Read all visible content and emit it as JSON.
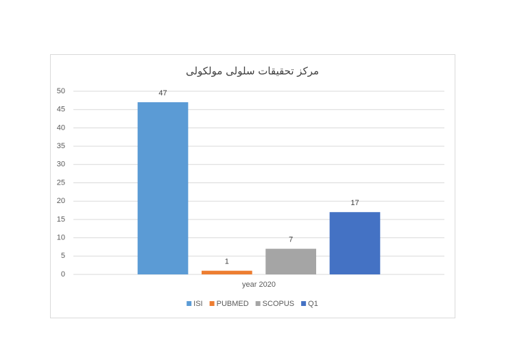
{
  "chart_data": {
    "type": "bar",
    "title": "مرکز تحقیقات سلولی مولکولی",
    "categories": [
      "year 2020"
    ],
    "series": [
      {
        "name": "ISI",
        "color": "#5b9bd5",
        "values": [
          47
        ]
      },
      {
        "name": "PUBMED",
        "color": "#ed7d31",
        "values": [
          1
        ]
      },
      {
        "name": "SCOPUS",
        "color": "#a5a5a5",
        "values": [
          7
        ]
      },
      {
        "name": "Q1",
        "color": "#4472c4",
        "values": [
          17
        ]
      }
    ],
    "ylim": [
      0,
      50
    ],
    "yticks": [
      0,
      5,
      10,
      15,
      20,
      25,
      30,
      35,
      40,
      45,
      50
    ],
    "grid": true,
    "legend": "bottom"
  }
}
